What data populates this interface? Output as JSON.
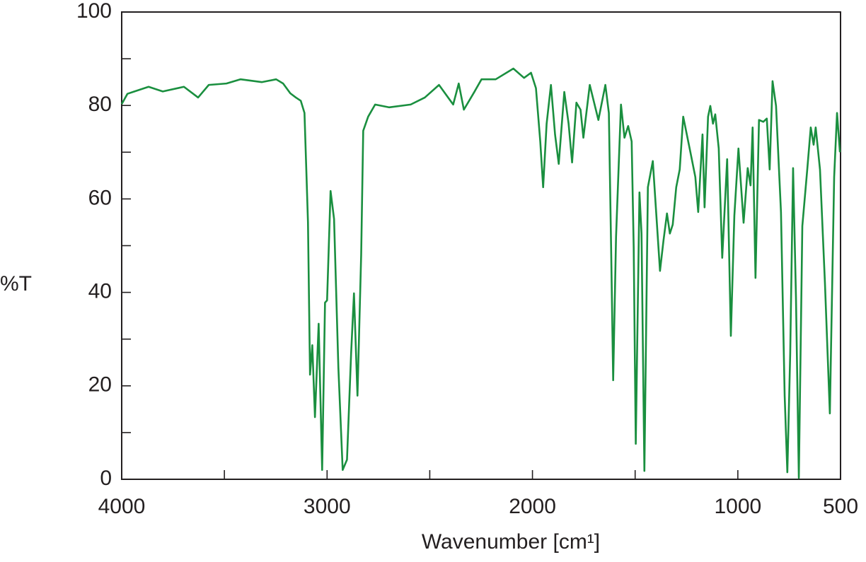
{
  "chart_data": {
    "type": "line",
    "x_label": "Wavenumber [cm¹]",
    "y_label": "%T",
    "xlim": [
      4000,
      500
    ],
    "ylim": [
      0,
      100
    ],
    "xticks": [
      4000,
      3000,
      2000,
      1000,
      500
    ],
    "xminor": [
      3500,
      2500,
      1500
    ],
    "yticks": [
      0,
      20,
      40,
      60,
      80,
      100
    ],
    "yminor": [
      10,
      30,
      50,
      70,
      90
    ],
    "x": [
      4000,
      3972,
      3938,
      3869,
      3800,
      3697,
      3628,
      3576,
      3490,
      3421,
      3317,
      3248,
      3214,
      3179,
      3152,
      3128,
      3110,
      3100,
      3093,
      3083,
      3072,
      3059,
      3041,
      3024,
      3010,
      3000,
      2983,
      2966,
      2945,
      2924,
      2903,
      2883,
      2869,
      2852,
      2834,
      2824,
      2800,
      2766,
      2697,
      2593,
      2524,
      2455,
      2386,
      2359,
      2334,
      2283,
      2248,
      2179,
      2093,
      2041,
      2007,
      1983,
      1962,
      1948,
      1931,
      1910,
      1890,
      1872,
      1845,
      1824,
      1807,
      1786,
      1766,
      1752,
      1721,
      1679,
      1645,
      1628,
      1617,
      1607,
      1593,
      1569,
      1552,
      1534,
      1517,
      1507,
      1497,
      1479,
      1469,
      1455,
      1438,
      1414,
      1400,
      1379,
      1362,
      1345,
      1331,
      1317,
      1300,
      1283,
      1266,
      1231,
      1207,
      1193,
      1172,
      1162,
      1145,
      1134,
      1121,
      1110,
      1093,
      1076,
      1052,
      1034,
      1017,
      997,
      972,
      952,
      938,
      928,
      914,
      897,
      876,
      859,
      845,
      831,
      814,
      790,
      772,
      759,
      745,
      731,
      717,
      703,
      686,
      662,
      645,
      631,
      621,
      600,
      576,
      552,
      531,
      517,
      503
    ],
    "series": [
      {
        "color": "#1a8f3f",
        "values": [
          80.3,
          82.5,
          83,
          84,
          83,
          84,
          81.7,
          84.4,
          84.7,
          85.6,
          85,
          85.6,
          84.7,
          82.6,
          81.7,
          81,
          78.4,
          64.7,
          55,
          22.4,
          28.7,
          13.3,
          33.3,
          2,
          37.8,
          38.3,
          61.7,
          55.7,
          23.9,
          2,
          4.2,
          26.9,
          39.8,
          17.9,
          48,
          74.6,
          77.6,
          80.2,
          79.6,
          80.2,
          81.7,
          84.4,
          80.2,
          84.7,
          79.1,
          82.9,
          85.6,
          85.6,
          87.9,
          85.9,
          87,
          83.7,
          72.3,
          62.5,
          76.1,
          84.4,
          73.8,
          67.5,
          82.9,
          76.1,
          67.8,
          80.6,
          79.1,
          73.1,
          84.4,
          76.9,
          84.4,
          78.4,
          49.6,
          21.2,
          51.9,
          80.2,
          73.1,
          75.6,
          72.3,
          49.6,
          7.6,
          61.4,
          52.6,
          1.8,
          62.5,
          68.1,
          58.7,
          44.6,
          51.1,
          56.9,
          52.6,
          54.5,
          62.5,
          66.3,
          77.6,
          70,
          64.7,
          57.2,
          73.8,
          58.2,
          77.6,
          79.9,
          76.1,
          78.1,
          70.8,
          47.4,
          68.5,
          30.7,
          56.4,
          70.8,
          54.9,
          66.6,
          62.9,
          75.3,
          43.1,
          76.9,
          76.5,
          77.2,
          66.3,
          85.2,
          79.9,
          57.2,
          17.9,
          1.5,
          26.9,
          66.6,
          39,
          0.3,
          54.2,
          66.3,
          75.3,
          71.6,
          75.3,
          66.3,
          42.1,
          14.1,
          64.7,
          78.4,
          70
        ]
      }
    ]
  }
}
